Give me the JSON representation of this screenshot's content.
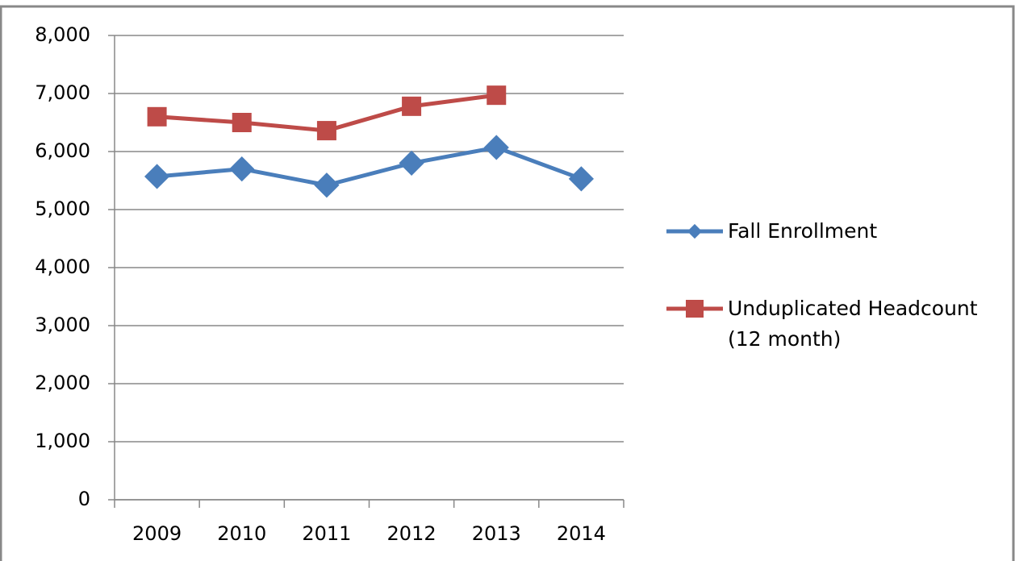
{
  "chart_data": {
    "type": "line",
    "categories": [
      "2009",
      "2010",
      "2011",
      "2012",
      "2013",
      "2014"
    ],
    "series": [
      {
        "name": "Fall Enrollment",
        "color": "#4a7ebb",
        "marker": "diamond",
        "values": [
          5570,
          5700,
          5420,
          5800,
          6070,
          5530
        ]
      },
      {
        "name": "Unduplicated Headcount (12 month)",
        "color": "#be4b48",
        "marker": "square",
        "values": [
          6600,
          6500,
          6360,
          6780,
          6970,
          null
        ]
      }
    ],
    "ylim": [
      0,
      8000
    ],
    "yticks": [
      0,
      {
        "value": 1000,
        "label": "1,000"
      },
      {
        "value": 2000,
        "label": "2,000"
      },
      {
        "value": 3000,
        "label": "3,000"
      },
      {
        "value": 4000,
        "label": "4,000"
      },
      {
        "value": 5000,
        "label": "5,000"
      },
      {
        "value": 6000,
        "label": "6,000"
      },
      {
        "value": 7000,
        "label": "7,000"
      },
      {
        "value": 8000,
        "label": "8,000"
      }
    ],
    "grid": true,
    "legend": "right"
  }
}
